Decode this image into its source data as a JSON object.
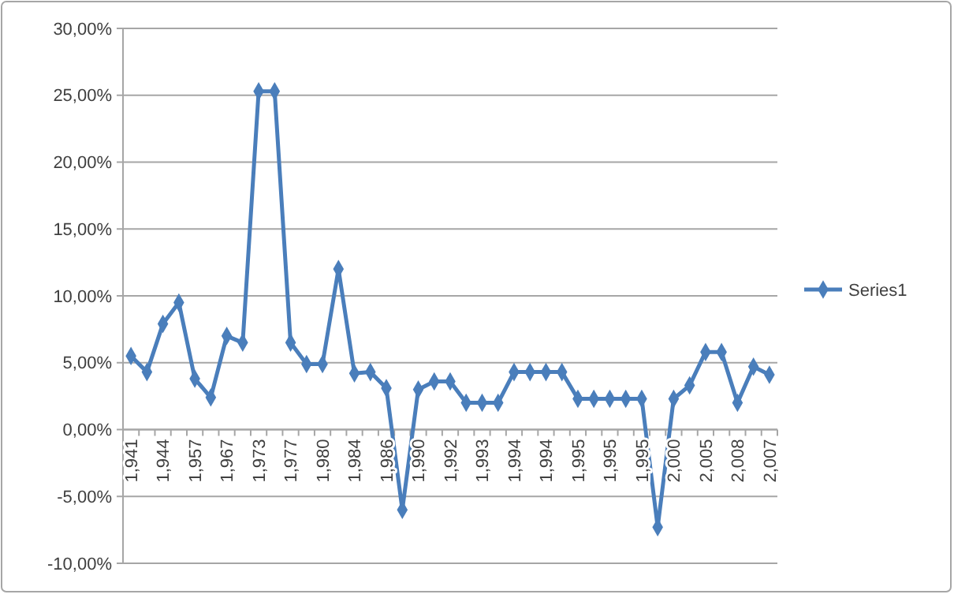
{
  "chart_data": {
    "type": "line",
    "categories": [
      "1,941",
      null,
      "1,944",
      null,
      "1,957",
      null,
      "1,967",
      null,
      "1,973",
      null,
      "1,977",
      null,
      "1,980",
      null,
      "1,984",
      null,
      "1,986",
      null,
      "1,990",
      null,
      "1,992",
      null,
      "1,993",
      null,
      "1,994",
      null,
      "1,994",
      null,
      "1,995",
      null,
      "1,995",
      null,
      "1,995",
      null,
      "2,000",
      null,
      "2,005",
      null,
      "2,008",
      null,
      "2,007"
    ],
    "series": [
      {
        "name": "Series1",
        "color": "#4a7ebb",
        "values": [
          5.5,
          4.3,
          7.9,
          9.5,
          3.8,
          2.4,
          7.0,
          6.5,
          25.3,
          25.3,
          6.5,
          4.9,
          4.9,
          12.0,
          4.2,
          4.3,
          3.1,
          -6.0,
          3.0,
          3.6,
          3.6,
          2.0,
          2.0,
          2.0,
          4.3,
          4.3,
          4.3,
          4.3,
          2.3,
          2.3,
          2.3,
          2.3,
          2.3,
          -7.3,
          2.3,
          3.3,
          5.8,
          5.8,
          2.0,
          4.7,
          4.1
        ]
      }
    ],
    "ylim": [
      -10,
      30
    ],
    "yticks": [
      {
        "value": -10,
        "label": "-10,00%"
      },
      {
        "value": -5,
        "label": "-5,00%"
      },
      {
        "value": 0,
        "label": "0,00%"
      },
      {
        "value": 5,
        "label": "5,00%"
      },
      {
        "value": 10,
        "label": "10,00%"
      },
      {
        "value": 15,
        "label": "15,00%"
      },
      {
        "value": 20,
        "label": "20,00%"
      },
      {
        "value": 25,
        "label": "25,00%"
      },
      {
        "value": 30,
        "label": "30,00%"
      }
    ],
    "grid": "y",
    "legend": "right",
    "marker": "diamond",
    "line_style": "solid"
  }
}
